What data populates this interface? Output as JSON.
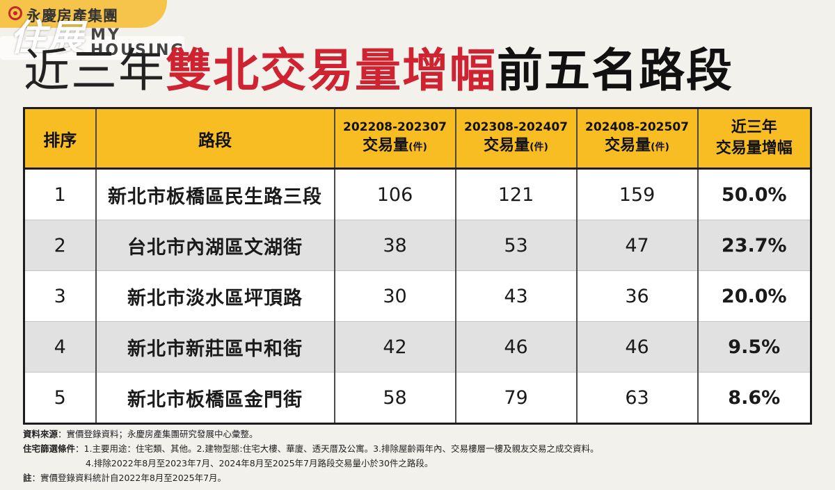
{
  "brand": {
    "name": "永慶房產集團",
    "watermark_script": "住展",
    "watermark_my": "MY",
    "watermark_housing": "HOUSING"
  },
  "title": {
    "part1": "近三年",
    "part2": "雙北交易量增幅",
    "part3": "前五名路段"
  },
  "table": {
    "headers": {
      "rank": "排序",
      "road": "路段",
      "period1": "202208-202307",
      "period2": "202308-202407",
      "period3": "202408-202507",
      "volume_label": "交易量",
      "unit_label": "(件)",
      "growth_line1": "近三年",
      "growth_line2": "交易量增幅"
    },
    "rows": [
      {
        "rank": "1",
        "road": "新北市板橋區民生路三段",
        "v1": "106",
        "v2": "121",
        "v3": "159",
        "growth": "50.0%"
      },
      {
        "rank": "2",
        "road": "台北市內湖區文湖街",
        "v1": "38",
        "v2": "53",
        "v3": "47",
        "growth": "23.7%"
      },
      {
        "rank": "3",
        "road": "新北市淡水區坪頂路",
        "v1": "30",
        "v2": "43",
        "v3": "36",
        "growth": "20.0%"
      },
      {
        "rank": "4",
        "road": "新北市新莊區中和街",
        "v1": "42",
        "v2": "46",
        "v3": "46",
        "growth": "9.5%"
      },
      {
        "rank": "5",
        "road": "新北市板橋區金門街",
        "v1": "58",
        "v2": "79",
        "v3": "63",
        "growth": "8.6%"
      }
    ]
  },
  "notes": {
    "source_label": "資料來源",
    "source_text": "：實價登錄資料；永慶房產集團研究發展中心彙整。",
    "filter_label": "住宅篩選條件",
    "filter_text": "：1.主要用途：住宅類、其他。2.建物型態:住宅大樓、華廈、透天厝及公寓。3.排除屋齡兩年內、交易樓層一樓及親友交易之成交資料。",
    "filter_text2": "4.排除2022年8月至2023年7月、2024年8月至2025年7月路段交易量小於30件之路段。",
    "note_label": "註",
    "note_text": "：實價登錄資料統計自2022年8月至2025年7月。"
  }
}
